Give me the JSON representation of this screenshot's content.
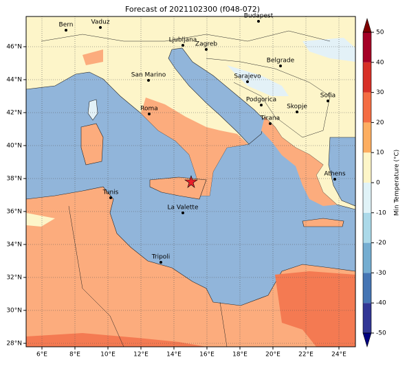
{
  "map": {
    "title": "Forecast of 2021102300 (f048-072)",
    "lon_ticks": [
      {
        "value": 6,
        "label": "6°E"
      },
      {
        "value": 8,
        "label": "8°E"
      },
      {
        "value": 10,
        "label": "10°E"
      },
      {
        "value": 12,
        "label": "12°E"
      },
      {
        "value": 14,
        "label": "14°E"
      },
      {
        "value": 16,
        "label": "16°E"
      },
      {
        "value": 18,
        "label": "18°E"
      },
      {
        "value": 20,
        "label": "20°E"
      },
      {
        "value": 22,
        "label": "22°E"
      },
      {
        "value": 24,
        "label": "24°E"
      }
    ],
    "lat_ticks": [
      {
        "value": 28,
        "label": "28°N"
      },
      {
        "value": 30,
        "label": "30°N"
      },
      {
        "value": 32,
        "label": "32°N"
      },
      {
        "value": 34,
        "label": "34°N"
      },
      {
        "value": 36,
        "label": "36°N"
      },
      {
        "value": 38,
        "label": "38°N"
      },
      {
        "value": 40,
        "label": "40°N"
      },
      {
        "value": 42,
        "label": "42°N"
      },
      {
        "value": 44,
        "label": "44°N"
      },
      {
        "value": 46,
        "label": "46°N"
      }
    ],
    "cities": [
      {
        "name": "Bern"
      },
      {
        "name": "Vaduz"
      },
      {
        "name": "Budapest"
      },
      {
        "name": "Ljubljana"
      },
      {
        "name": "Zagreb"
      },
      {
        "name": "Belgrade"
      },
      {
        "name": "San Marino"
      },
      {
        "name": "Sarajevo"
      },
      {
        "name": "Sofia"
      },
      {
        "name": "Podgorica"
      },
      {
        "name": "Skopje"
      },
      {
        "name": "Roma"
      },
      {
        "name": "Tirana"
      },
      {
        "name": "Athens"
      },
      {
        "name": "Tunis"
      },
      {
        "name": "La Valette"
      },
      {
        "name": "Tripoli"
      }
    ],
    "colorbar": {
      "label": "Min Temperature (°C)",
      "ticks": [
        -50,
        -40,
        -30,
        -20,
        -10,
        0,
        10,
        20,
        30,
        40,
        50
      ]
    }
  }
}
